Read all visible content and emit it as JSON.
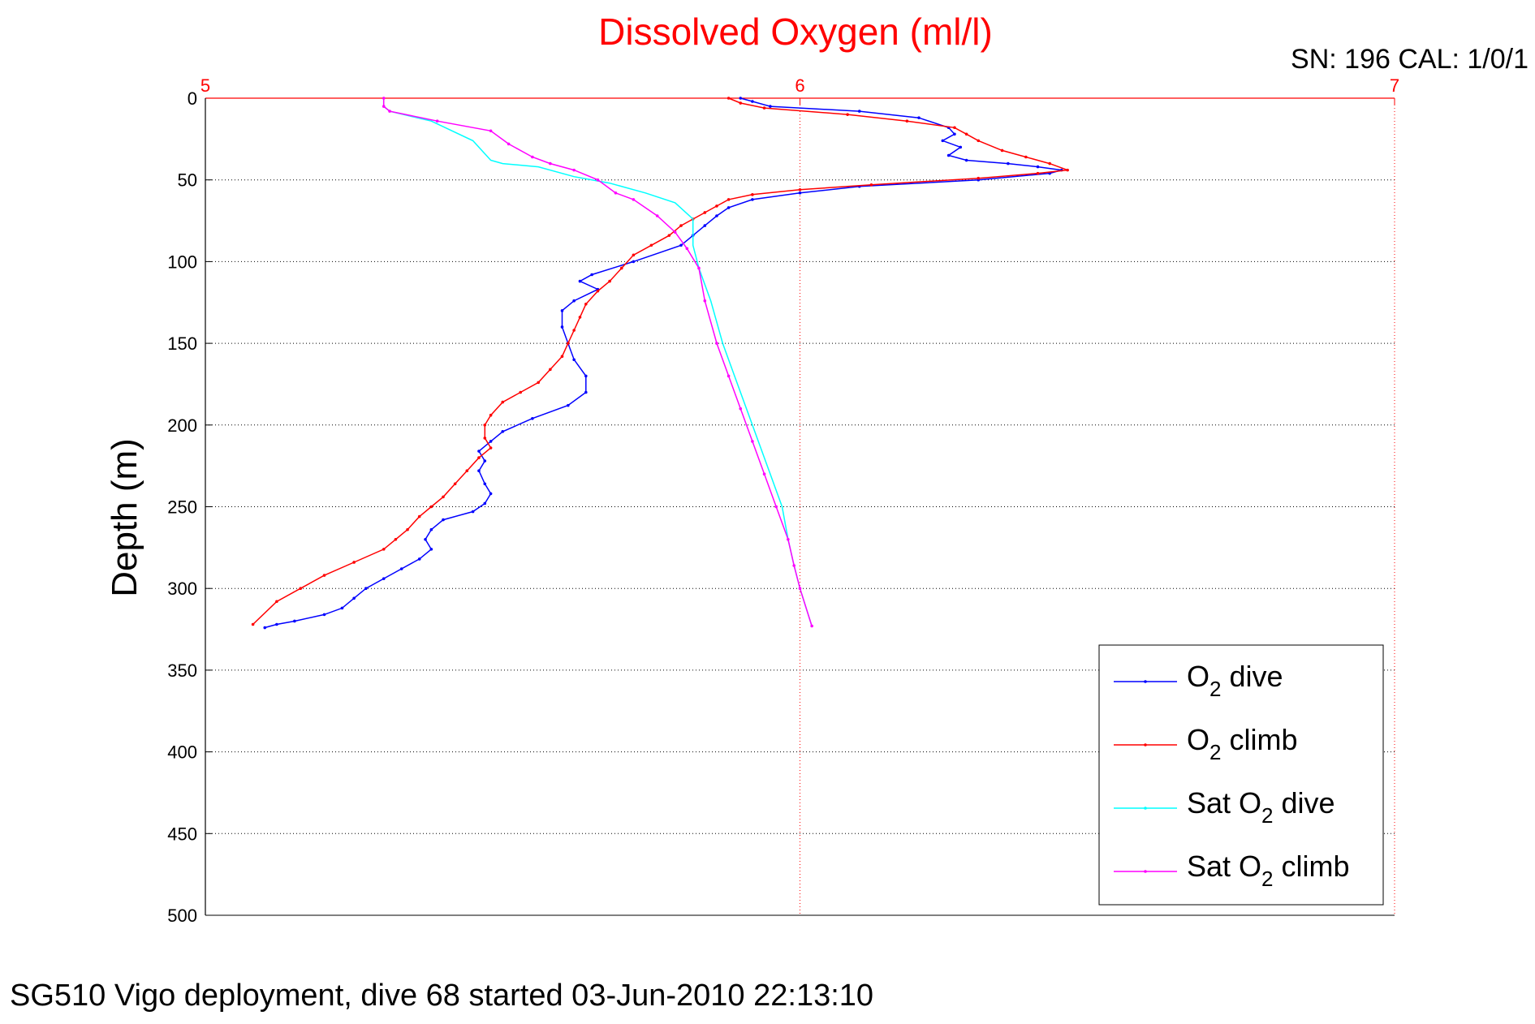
{
  "footer_text": "SG510 Vigo deployment, dive 68 started 03-Jun-2010 22:13:10",
  "serial_text": "SN: 196  CAL: 1/0/1",
  "chart_data": {
    "type": "line",
    "title": "Dissolved Oxygen (ml/l)",
    "xlabel": "",
    "ylabel": "Depth (m)",
    "xlim": [
      5,
      7
    ],
    "ylim": [
      0,
      500
    ],
    "y_reversed": true,
    "x_axis_position": "top",
    "x_ticks": [
      5,
      6,
      7
    ],
    "y_ticks": [
      0,
      50,
      100,
      150,
      200,
      250,
      300,
      350,
      400,
      450,
      500
    ],
    "grid": true,
    "legend": "bottom-right",
    "colors": {
      "title": "#ff0000",
      "x_axis": "#ff0000",
      "grid_x": "#ff0000",
      "grid_y": "#000000"
    },
    "series": [
      {
        "name": "O2 dive",
        "legend_main": "O",
        "legend_sub": "2",
        "legend_rest": " dive",
        "color": "#0000ff",
        "marker": "dot",
        "x": [
          5.9,
          5.92,
          5.95,
          6.1,
          6.2,
          6.25,
          6.26,
          6.24,
          6.27,
          6.25,
          6.28,
          6.35,
          6.4,
          6.44,
          6.42,
          6.3,
          6.1,
          6.0,
          5.92,
          5.88,
          5.86,
          5.84,
          5.82,
          5.8,
          5.72,
          5.65,
          5.63,
          5.66,
          5.62,
          5.6,
          5.6,
          5.61,
          5.62,
          5.64,
          5.64,
          5.61,
          5.55,
          5.5,
          5.48,
          5.46,
          5.47,
          5.46,
          5.47,
          5.48,
          5.47,
          5.45,
          5.4,
          5.38,
          5.37,
          5.38,
          5.36,
          5.33,
          5.3,
          5.27,
          5.25,
          5.23,
          5.2,
          5.15,
          5.12,
          5.1
        ],
        "y": [
          0,
          2,
          5,
          8,
          12,
          18,
          22,
          26,
          30,
          35,
          38,
          40,
          42,
          44,
          46,
          50,
          54,
          58,
          62,
          67,
          72,
          78,
          84,
          90,
          100,
          108,
          112,
          117,
          124,
          130,
          140,
          150,
          160,
          170,
          180,
          188,
          196,
          204,
          210,
          216,
          222,
          228,
          236,
          242,
          248,
          253,
          258,
          264,
          270,
          276,
          282,
          288,
          294,
          300,
          306,
          312,
          316,
          320,
          322,
          324
        ]
      },
      {
        "name": "O2 climb",
        "legend_main": "O",
        "legend_sub": "2",
        "legend_rest": " climb",
        "color": "#ff0000",
        "marker": "dot",
        "x": [
          5.88,
          5.9,
          5.94,
          6.08,
          6.18,
          6.26,
          6.28,
          6.3,
          6.34,
          6.38,
          6.42,
          6.45,
          6.4,
          6.3,
          6.12,
          6.0,
          5.92,
          5.88,
          5.86,
          5.84,
          5.82,
          5.8,
          5.78,
          5.75,
          5.72,
          5.7,
          5.68,
          5.66,
          5.64,
          5.63,
          5.62,
          5.61,
          5.6,
          5.58,
          5.56,
          5.53,
          5.5,
          5.48,
          5.47,
          5.47,
          5.48,
          5.46,
          5.44,
          5.42,
          5.4,
          5.38,
          5.36,
          5.34,
          5.32,
          5.3,
          5.25,
          5.2,
          5.16,
          5.12,
          5.08
        ],
        "y": [
          0,
          3,
          6,
          10,
          14,
          18,
          22,
          26,
          32,
          36,
          40,
          44,
          46,
          49,
          53,
          56,
          59,
          62,
          66,
          70,
          74,
          78,
          84,
          90,
          96,
          104,
          112,
          118,
          126,
          134,
          142,
          150,
          158,
          166,
          174,
          180,
          186,
          194,
          200,
          208,
          214,
          220,
          228,
          236,
          244,
          250,
          256,
          264,
          270,
          276,
          284,
          292,
          300,
          308,
          322
        ]
      },
      {
        "name": "Sat O2 dive",
        "legend_main": "Sat O",
        "legend_sub": "2",
        "legend_rest": " dive",
        "color": "#00ffff",
        "marker": "none",
        "x": [
          5.3,
          5.3,
          5.31,
          5.38,
          5.45,
          5.47,
          5.48,
          5.5,
          5.56,
          5.62,
          5.68,
          5.74,
          5.79,
          5.82,
          5.82,
          5.82,
          5.83,
          5.85,
          5.87,
          5.89,
          5.91,
          5.93,
          5.95,
          5.97,
          5.98,
          5.99,
          6.0,
          6.02
        ],
        "y": [
          0,
          5,
          8,
          14,
          26,
          34,
          38,
          40,
          42,
          48,
          52,
          58,
          64,
          74,
          84,
          90,
          104,
          124,
          150,
          170,
          190,
          210,
          230,
          250,
          270,
          286,
          300,
          323
        ]
      },
      {
        "name": "Sat O2 climb",
        "legend_main": "Sat O",
        "legend_sub": "2",
        "legend_rest": " climb",
        "color": "#ff00ff",
        "marker": "dot",
        "x": [
          5.3,
          5.3,
          5.31,
          5.39,
          5.48,
          5.51,
          5.55,
          5.58,
          5.62,
          5.66,
          5.69,
          5.72,
          5.76,
          5.79,
          5.81,
          5.83,
          5.84,
          5.86,
          5.88,
          5.9,
          5.92,
          5.94,
          5.96,
          5.98,
          5.99,
          6.0,
          6.02
        ],
        "y": [
          0,
          5,
          8,
          14,
          20,
          28,
          36,
          40,
          44,
          50,
          58,
          62,
          72,
          82,
          92,
          104,
          124,
          150,
          170,
          190,
          210,
          230,
          250,
          270,
          286,
          300,
          323
        ]
      }
    ]
  }
}
